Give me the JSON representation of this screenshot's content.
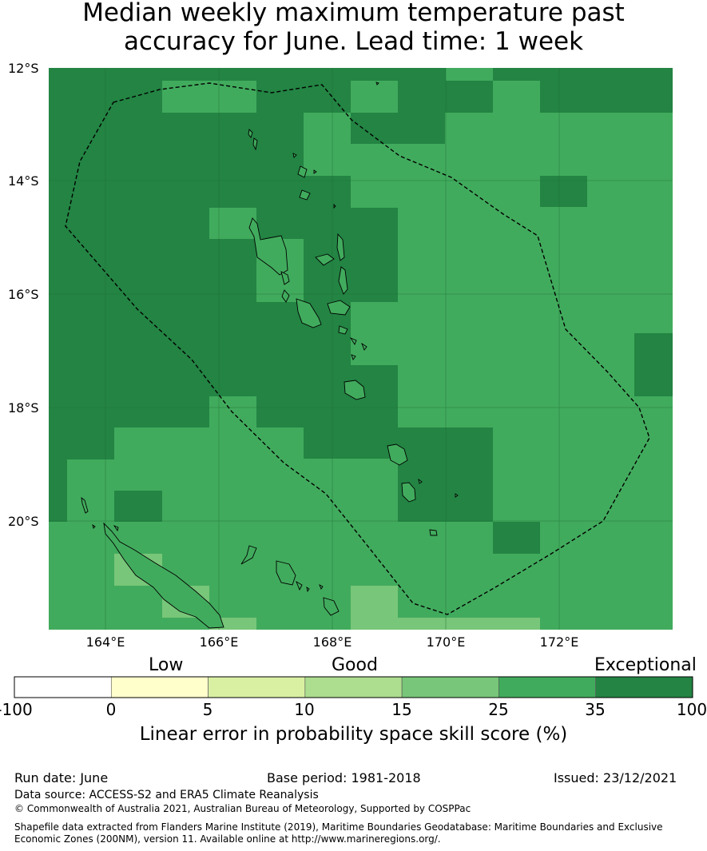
{
  "title": {
    "line1": "Median weekly maximum temperature past",
    "line2": "accuracy for June. Lead time: 1 week"
  },
  "map": {
    "lat_labels": [
      "12°S",
      "14°S",
      "16°S",
      "18°S",
      "20°S"
    ],
    "lon_labels": [
      "164°E",
      "166°E",
      "168°E",
      "170°E",
      "172°E"
    ],
    "extent": {
      "lon_min": 163.0,
      "lon_max": 174.0,
      "lat_min": -21.9,
      "lat_max": -12.0
    }
  },
  "colorbar": {
    "categories": [
      "Low",
      "Good",
      "Exceptional"
    ],
    "ticks": [
      "-100",
      "0",
      "5",
      "10",
      "15",
      "25",
      "35",
      "100"
    ],
    "colors": [
      "#ffffff",
      "#ffffcc",
      "#d9f0a3",
      "#addd8e",
      "#78c679",
      "#41ab5d",
      "#238443"
    ],
    "title": "Linear error in probability space skill score (%)"
  },
  "footer": {
    "run_date": "Run date: June",
    "base_period": "Base period: 1981-2018",
    "issued": "Issued: 23/12/2021",
    "data_source": "Data source: ACCESS-S2 and ERA5 Climate Reanalysis",
    "copyright": "© Commonwealth of Australia 2021, Australian Bureau of Meteorology, Supported by COSPPac",
    "shapefile1": "Shapefile data extracted from Flanders Marine Institute (2019), Maritime Boundaries Geodatabase: Maritime Boundaries and Exclusive",
    "shapefile2": "Economic Zones (200NM), version 11. Available online at http://www.marineregions.org/."
  }
}
